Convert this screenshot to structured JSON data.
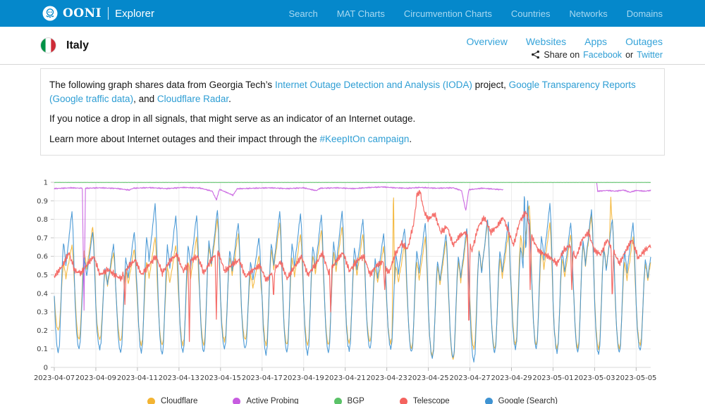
{
  "navbar": {
    "brand": "OONI",
    "brand_sub": "Explorer",
    "links": [
      "Search",
      "MAT Charts",
      "Circumvention Charts",
      "Countries",
      "Networks",
      "Domains"
    ]
  },
  "header": {
    "country": "Italy",
    "tabs": [
      "Overview",
      "Websites",
      "Apps",
      "Outages"
    ],
    "share": {
      "prefix": "Share on",
      "facebook": "Facebook",
      "or": "or",
      "twitter": "Twitter"
    }
  },
  "intro": {
    "p1": [
      {
        "t": "The following graph shares data from Georgia Tech’s "
      },
      {
        "t": "Internet Outage Detection and Analysis (IODA)",
        "link": true
      },
      {
        "t": " project, "
      },
      {
        "t": "Google Transparency Reports (Google traffic data)",
        "link": true
      },
      {
        "t": ", and "
      },
      {
        "t": "Cloudflare Radar",
        "link": true
      },
      {
        "t": "."
      }
    ],
    "p2": [
      {
        "t": "If you notice a drop in all signals, that might serve as an indicator of an Internet outage."
      }
    ],
    "p3": [
      {
        "t": "Learn more about Internet outages and their impact through the "
      },
      {
        "t": "#KeepItOn campaign",
        "link": true
      },
      {
        "t": "."
      }
    ]
  },
  "colors": {
    "navbar_blue": "#0588cb",
    "link_blue": "#2e9ed4",
    "flag_green": "#009246",
    "flag_red": "#ce2b37"
  },
  "chart_data": {
    "type": "line",
    "title": "",
    "xlabel": "",
    "ylabel": "",
    "ylim": [
      0,
      1
    ],
    "grid": true,
    "legend_position": "bottom",
    "x_span_days": 28.7,
    "x_ticks": [
      "2023-04-07",
      "2023-04-09",
      "2023-04-11",
      "2023-04-13",
      "2023-04-15",
      "2023-04-17",
      "2023-04-19",
      "2023-04-21",
      "2023-04-23",
      "2023-04-25",
      "2023-04-27",
      "2023-04-29",
      "2023-05-01",
      "2023-05-03",
      "2023-05-05"
    ],
    "y_ticks": [
      "0",
      "0.1",
      "0.2",
      "0.3",
      "0.4",
      "0.5",
      "0.6",
      "0.7",
      "0.8",
      "0.9",
      "1"
    ],
    "day_shape": [
      [
        0.0,
        0.4
      ],
      [
        0.06,
        0.18
      ],
      [
        0.13,
        0.04
      ],
      [
        0.19,
        0.0
      ],
      [
        0.25,
        0.06
      ],
      [
        0.31,
        0.3
      ],
      [
        0.38,
        0.62
      ],
      [
        0.44,
        0.78
      ],
      [
        0.5,
        0.72
      ],
      [
        0.56,
        0.62
      ],
      [
        0.63,
        0.72
      ],
      [
        0.7,
        0.8
      ],
      [
        0.78,
        0.92
      ],
      [
        0.85,
        1.0
      ],
      [
        0.9,
        0.88
      ],
      [
        0.95,
        0.62
      ]
    ],
    "draw_order": [
      0,
      1,
      2,
      4,
      3
    ],
    "series": [
      {
        "name": "Cloudflare",
        "color": "#f3b433",
        "noise": 0.008,
        "width": 1.1,
        "days": [
          [
            0.2,
            0.66
          ],
          [
            0.15,
            0.76
          ],
          [
            0.15,
            0.62
          ],
          [
            0.14,
            0.64
          ],
          [
            0.12,
            0.7
          ],
          [
            0.12,
            0.66
          ],
          [
            0.12,
            0.7
          ],
          [
            0.12,
            0.8
          ],
          [
            0.14,
            0.72
          ],
          [
            0.15,
            0.6
          ],
          [
            0.12,
            0.78
          ],
          [
            0.12,
            0.72
          ],
          [
            0.12,
            0.74
          ],
          [
            0.12,
            0.76
          ],
          [
            0.13,
            0.72
          ],
          [
            0.14,
            0.65
          ],
          [
            0.13,
            0.66
          ],
          [
            0.1,
            0.7
          ],
          [
            0.06,
            0.68
          ],
          [
            0.04,
            0.72
          ],
          [
            0.1,
            0.78
          ],
          [
            0.1,
            0.72
          ],
          [
            0.12,
            0.88
          ],
          [
            0.12,
            0.78
          ],
          [
            0.1,
            0.72
          ],
          [
            0.1,
            0.82
          ],
          [
            0.1,
            0.8
          ],
          [
            0.1,
            0.7
          ],
          [
            0.12,
            0.68
          ]
        ],
        "spikes": [
          [
            16.32,
            1.0
          ],
          [
            26.78,
            0.92
          ]
        ]
      },
      {
        "name": "Active Probing",
        "color": "#c75ce0",
        "noise": 0.004,
        "width": 1.1,
        "points": [
          [
            0,
            0.966
          ],
          [
            0.8,
            0.97
          ],
          [
            1.35,
            0.968
          ],
          [
            1.43,
            0.31
          ],
          [
            1.5,
            0.968
          ],
          [
            2.2,
            0.97
          ],
          [
            3.0,
            0.967
          ],
          [
            3.6,
            0.958
          ],
          [
            3.8,
            0.968
          ],
          [
            4.6,
            0.971
          ],
          [
            5.4,
            0.966
          ],
          [
            6.2,
            0.972
          ],
          [
            7.0,
            0.969
          ],
          [
            7.6,
            0.952
          ],
          [
            7.8,
            0.905
          ],
          [
            7.95,
            0.962
          ],
          [
            8.6,
            0.93
          ],
          [
            8.8,
            0.965
          ],
          [
            9.6,
            0.968
          ],
          [
            10.4,
            0.97
          ],
          [
            11.2,
            0.966
          ],
          [
            12.0,
            0.97
          ],
          [
            12.6,
            0.955
          ],
          [
            12.8,
            0.968
          ],
          [
            13.6,
            0.97
          ],
          [
            14.4,
            0.966
          ],
          [
            15.2,
            0.972
          ],
          [
            15.8,
            0.975
          ],
          [
            16.4,
            0.97
          ],
          [
            17.0,
            0.968
          ],
          [
            17.6,
            0.972
          ],
          [
            18.4,
            0.968
          ],
          [
            19.2,
            0.97
          ],
          [
            19.6,
            0.955
          ],
          [
            19.8,
            0.846
          ],
          [
            19.95,
            0.96
          ],
          [
            20.6,
            0.968
          ],
          [
            21.3,
            0.962
          ],
          [
            21.6,
            0.96
          ],
          null,
          [
            26.1,
            0.998
          ],
          [
            26.15,
            0.952
          ],
          [
            26.6,
            0.956
          ],
          [
            27.0,
            0.952
          ],
          [
            27.4,
            0.958
          ],
          [
            27.7,
            0.946
          ],
          [
            28.0,
            0.956
          ],
          [
            28.4,
            0.952
          ],
          [
            28.7,
            0.956
          ]
        ]
      },
      {
        "name": "BGP",
        "color": "#5bc268",
        "noise": 0.001,
        "width": 1.1,
        "points": [
          [
            0,
            0.999
          ],
          [
            28.7,
            0.999
          ]
        ]
      },
      {
        "name": "Telescope",
        "color": "#f4635e",
        "noise": 0.02,
        "width": 1.25,
        "points": [
          [
            0.0,
            0.49
          ],
          [
            0.4,
            0.55
          ],
          [
            0.7,
            0.62
          ],
          [
            1.0,
            0.52
          ],
          [
            1.3,
            0.51
          ],
          [
            1.6,
            0.56
          ],
          [
            1.9,
            0.6
          ],
          [
            2.2,
            0.5
          ],
          [
            2.6,
            0.53
          ],
          [
            2.9,
            0.5
          ],
          [
            3.2,
            0.48
          ],
          [
            3.6,
            0.55
          ],
          [
            3.9,
            0.58
          ],
          [
            4.2,
            0.5
          ],
          [
            4.6,
            0.56
          ],
          [
            4.9,
            0.6
          ],
          [
            5.2,
            0.51
          ],
          [
            5.6,
            0.58
          ],
          [
            5.9,
            0.61
          ],
          [
            6.2,
            0.52
          ],
          [
            6.6,
            0.58
          ],
          [
            6.9,
            0.6
          ],
          [
            7.2,
            0.51
          ],
          [
            7.6,
            0.59
          ],
          [
            7.9,
            0.62
          ],
          [
            8.2,
            0.52
          ],
          [
            8.6,
            0.56
          ],
          [
            8.9,
            0.58
          ],
          [
            9.2,
            0.49
          ],
          [
            9.6,
            0.53
          ],
          [
            9.9,
            0.55
          ],
          [
            10.2,
            0.47
          ],
          [
            10.6,
            0.53
          ],
          [
            10.9,
            0.57
          ],
          [
            11.2,
            0.48
          ],
          [
            11.6,
            0.55
          ],
          [
            11.9,
            0.6
          ],
          [
            12.2,
            0.5
          ],
          [
            12.6,
            0.56
          ],
          [
            12.9,
            0.62
          ],
          [
            13.2,
            0.51
          ],
          [
            13.6,
            0.58
          ],
          [
            13.9,
            0.62
          ],
          [
            14.2,
            0.52
          ],
          [
            14.6,
            0.58
          ],
          [
            14.9,
            0.6
          ],
          [
            15.2,
            0.5
          ],
          [
            15.5,
            0.55
          ],
          [
            15.8,
            0.57
          ],
          [
            16.1,
            0.51
          ],
          [
            16.4,
            0.61
          ],
          [
            16.7,
            0.67
          ],
          [
            17.0,
            0.64
          ],
          [
            17.3,
            0.78
          ],
          [
            17.45,
            0.93
          ],
          [
            17.6,
            0.95
          ],
          [
            17.8,
            0.84
          ],
          [
            18.0,
            0.8
          ],
          [
            18.3,
            0.83
          ],
          [
            18.6,
            0.73
          ],
          [
            18.9,
            0.76
          ],
          [
            19.2,
            0.66
          ],
          [
            19.5,
            0.71
          ],
          [
            19.8,
            0.73
          ],
          [
            20.1,
            0.63
          ],
          [
            20.4,
            0.76
          ],
          [
            20.7,
            0.81
          ],
          [
            21.0,
            0.73
          ],
          [
            21.3,
            0.76
          ],
          [
            21.6,
            0.81
          ],
          [
            21.9,
            0.72
          ],
          [
            22.1,
            0.66
          ],
          [
            22.4,
            0.79
          ],
          [
            22.7,
            0.84
          ],
          [
            23.0,
            0.7
          ],
          [
            23.3,
            0.63
          ],
          [
            23.6,
            0.61
          ],
          [
            23.9,
            0.59
          ],
          [
            24.2,
            0.56
          ],
          [
            24.5,
            0.63
          ],
          [
            24.8,
            0.66
          ],
          [
            25.1,
            0.59
          ],
          [
            25.4,
            0.69
          ],
          [
            25.7,
            0.73
          ],
          [
            26.0,
            0.63
          ],
          [
            26.3,
            0.61
          ],
          [
            26.6,
            0.69
          ],
          [
            26.9,
            0.63
          ],
          [
            27.2,
            0.56
          ],
          [
            27.5,
            0.63
          ],
          [
            27.8,
            0.69
          ],
          [
            28.1,
            0.59
          ],
          [
            28.4,
            0.63
          ],
          [
            28.7,
            0.66
          ]
        ],
        "spikes": [
          [
            3.4,
            0.34
          ],
          [
            6.5,
            0.14
          ],
          [
            7.8,
            0.26
          ],
          [
            10.55,
            0.37
          ],
          [
            13.3,
            0.3
          ],
          [
            15.9,
            0.42
          ],
          [
            19.95,
            0.17
          ],
          [
            22.9,
            0.42
          ],
          [
            24.9,
            0.42
          ],
          [
            26.85,
            0.35
          ]
        ]
      },
      {
        "name": "Google (Search)",
        "color": "#3f93d2",
        "noise": 0.008,
        "width": 1.1,
        "days": [
          [
            0.08,
            0.84
          ],
          [
            0.1,
            0.73
          ],
          [
            0.1,
            0.66
          ],
          [
            0.08,
            0.73
          ],
          [
            0.08,
            0.88
          ],
          [
            0.07,
            0.82
          ],
          [
            0.08,
            0.82
          ],
          [
            0.08,
            0.85
          ],
          [
            0.1,
            0.78
          ],
          [
            0.1,
            0.7
          ],
          [
            0.07,
            0.84
          ],
          [
            0.08,
            0.83
          ],
          [
            0.07,
            0.82
          ],
          [
            0.08,
            0.84
          ],
          [
            0.09,
            0.8
          ],
          [
            0.1,
            0.72
          ],
          [
            0.1,
            0.75
          ],
          [
            0.08,
            0.78
          ],
          [
            0.05,
            0.72
          ],
          [
            0.05,
            0.75
          ],
          [
            0.03,
            0.8
          ],
          [
            0.08,
            0.78
          ],
          [
            0.1,
            0.8
          ],
          [
            0.1,
            0.88
          ],
          [
            0.08,
            0.78
          ],
          [
            0.08,
            0.85
          ],
          [
            0.07,
            0.8
          ],
          [
            0.08,
            0.78
          ],
          [
            0.09,
            0.72
          ]
        ],
        "spikes": [
          [
            22.62,
            0.97
          ],
          [
            22.78,
            0.9
          ]
        ]
      }
    ]
  }
}
